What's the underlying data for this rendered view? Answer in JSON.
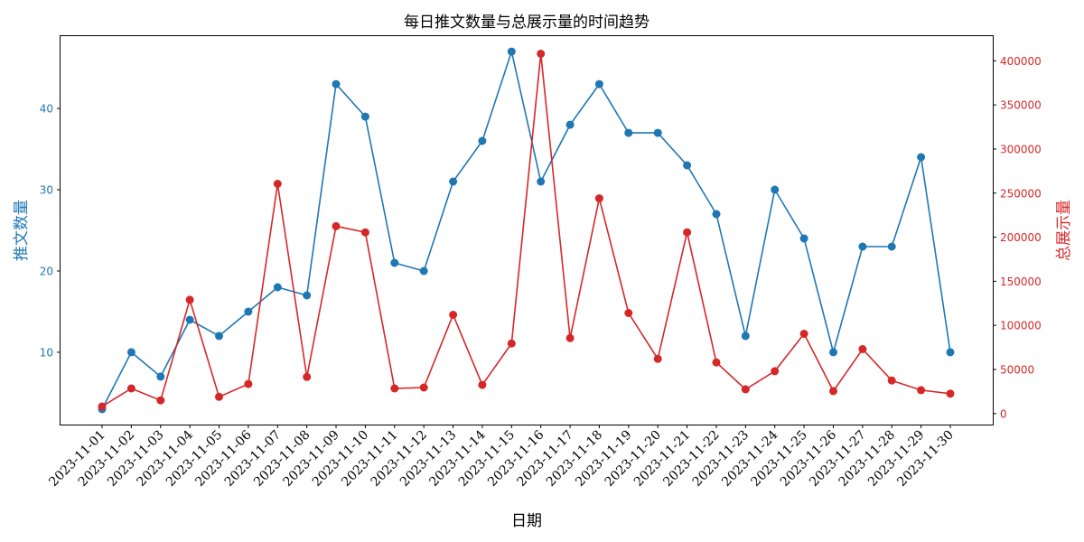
{
  "chart_data": {
    "type": "line",
    "title": "每日推文数量与总展示量的时间趋势",
    "xlabel": "日期",
    "ylabel": "推文数量",
    "ylabel_right": "总展示量",
    "categories": [
      "2023-11-01",
      "2023-11-02",
      "2023-11-03",
      "2023-11-04",
      "2023-11-05",
      "2023-11-06",
      "2023-11-07",
      "2023-11-08",
      "2023-11-09",
      "2023-11-10",
      "2023-11-11",
      "2023-11-12",
      "2023-11-13",
      "2023-11-14",
      "2023-11-15",
      "2023-11-16",
      "2023-11-17",
      "2023-11-18",
      "2023-11-19",
      "2023-11-20",
      "2023-11-21",
      "2023-11-22",
      "2023-11-23",
      "2023-11-24",
      "2023-11-25",
      "2023-11-26",
      "2023-11-27",
      "2023-11-28",
      "2023-11-29",
      "2023-11-30"
    ],
    "series": [
      {
        "name": "推文数量",
        "axis": "left",
        "color": "#1f77b4",
        "marker": "circle",
        "values": [
          3,
          10,
          7,
          14,
          12,
          15,
          18,
          17,
          43,
          39,
          21,
          20,
          31,
          36,
          47,
          31,
          38,
          43,
          37,
          37,
          33,
          27,
          12,
          30,
          24,
          10,
          23,
          23,
          34,
          10
        ]
      },
      {
        "name": "总展示量",
        "axis": "right",
        "color": "#d62728",
        "marker": "circle",
        "values": [
          8000,
          28500,
          15000,
          129000,
          19000,
          33500,
          260500,
          41500,
          212500,
          205500,
          28500,
          29500,
          112000,
          32500,
          79500,
          408000,
          85500,
          244000,
          114000,
          62000,
          205500,
          58000,
          27500,
          48000,
          90500,
          25500,
          73000,
          37500,
          26500,
          22500
        ]
      }
    ],
    "ylim": [
      1.1,
      48.9
    ],
    "ylim_right": [
      -12500,
      428000
    ],
    "yticks_left": [
      10,
      20,
      30,
      40
    ],
    "yticks_right": [
      0,
      50000,
      100000,
      150000,
      200000,
      250000,
      300000,
      350000,
      400000
    ],
    "grid": false,
    "legend": null,
    "xtick_rotation": 45
  }
}
